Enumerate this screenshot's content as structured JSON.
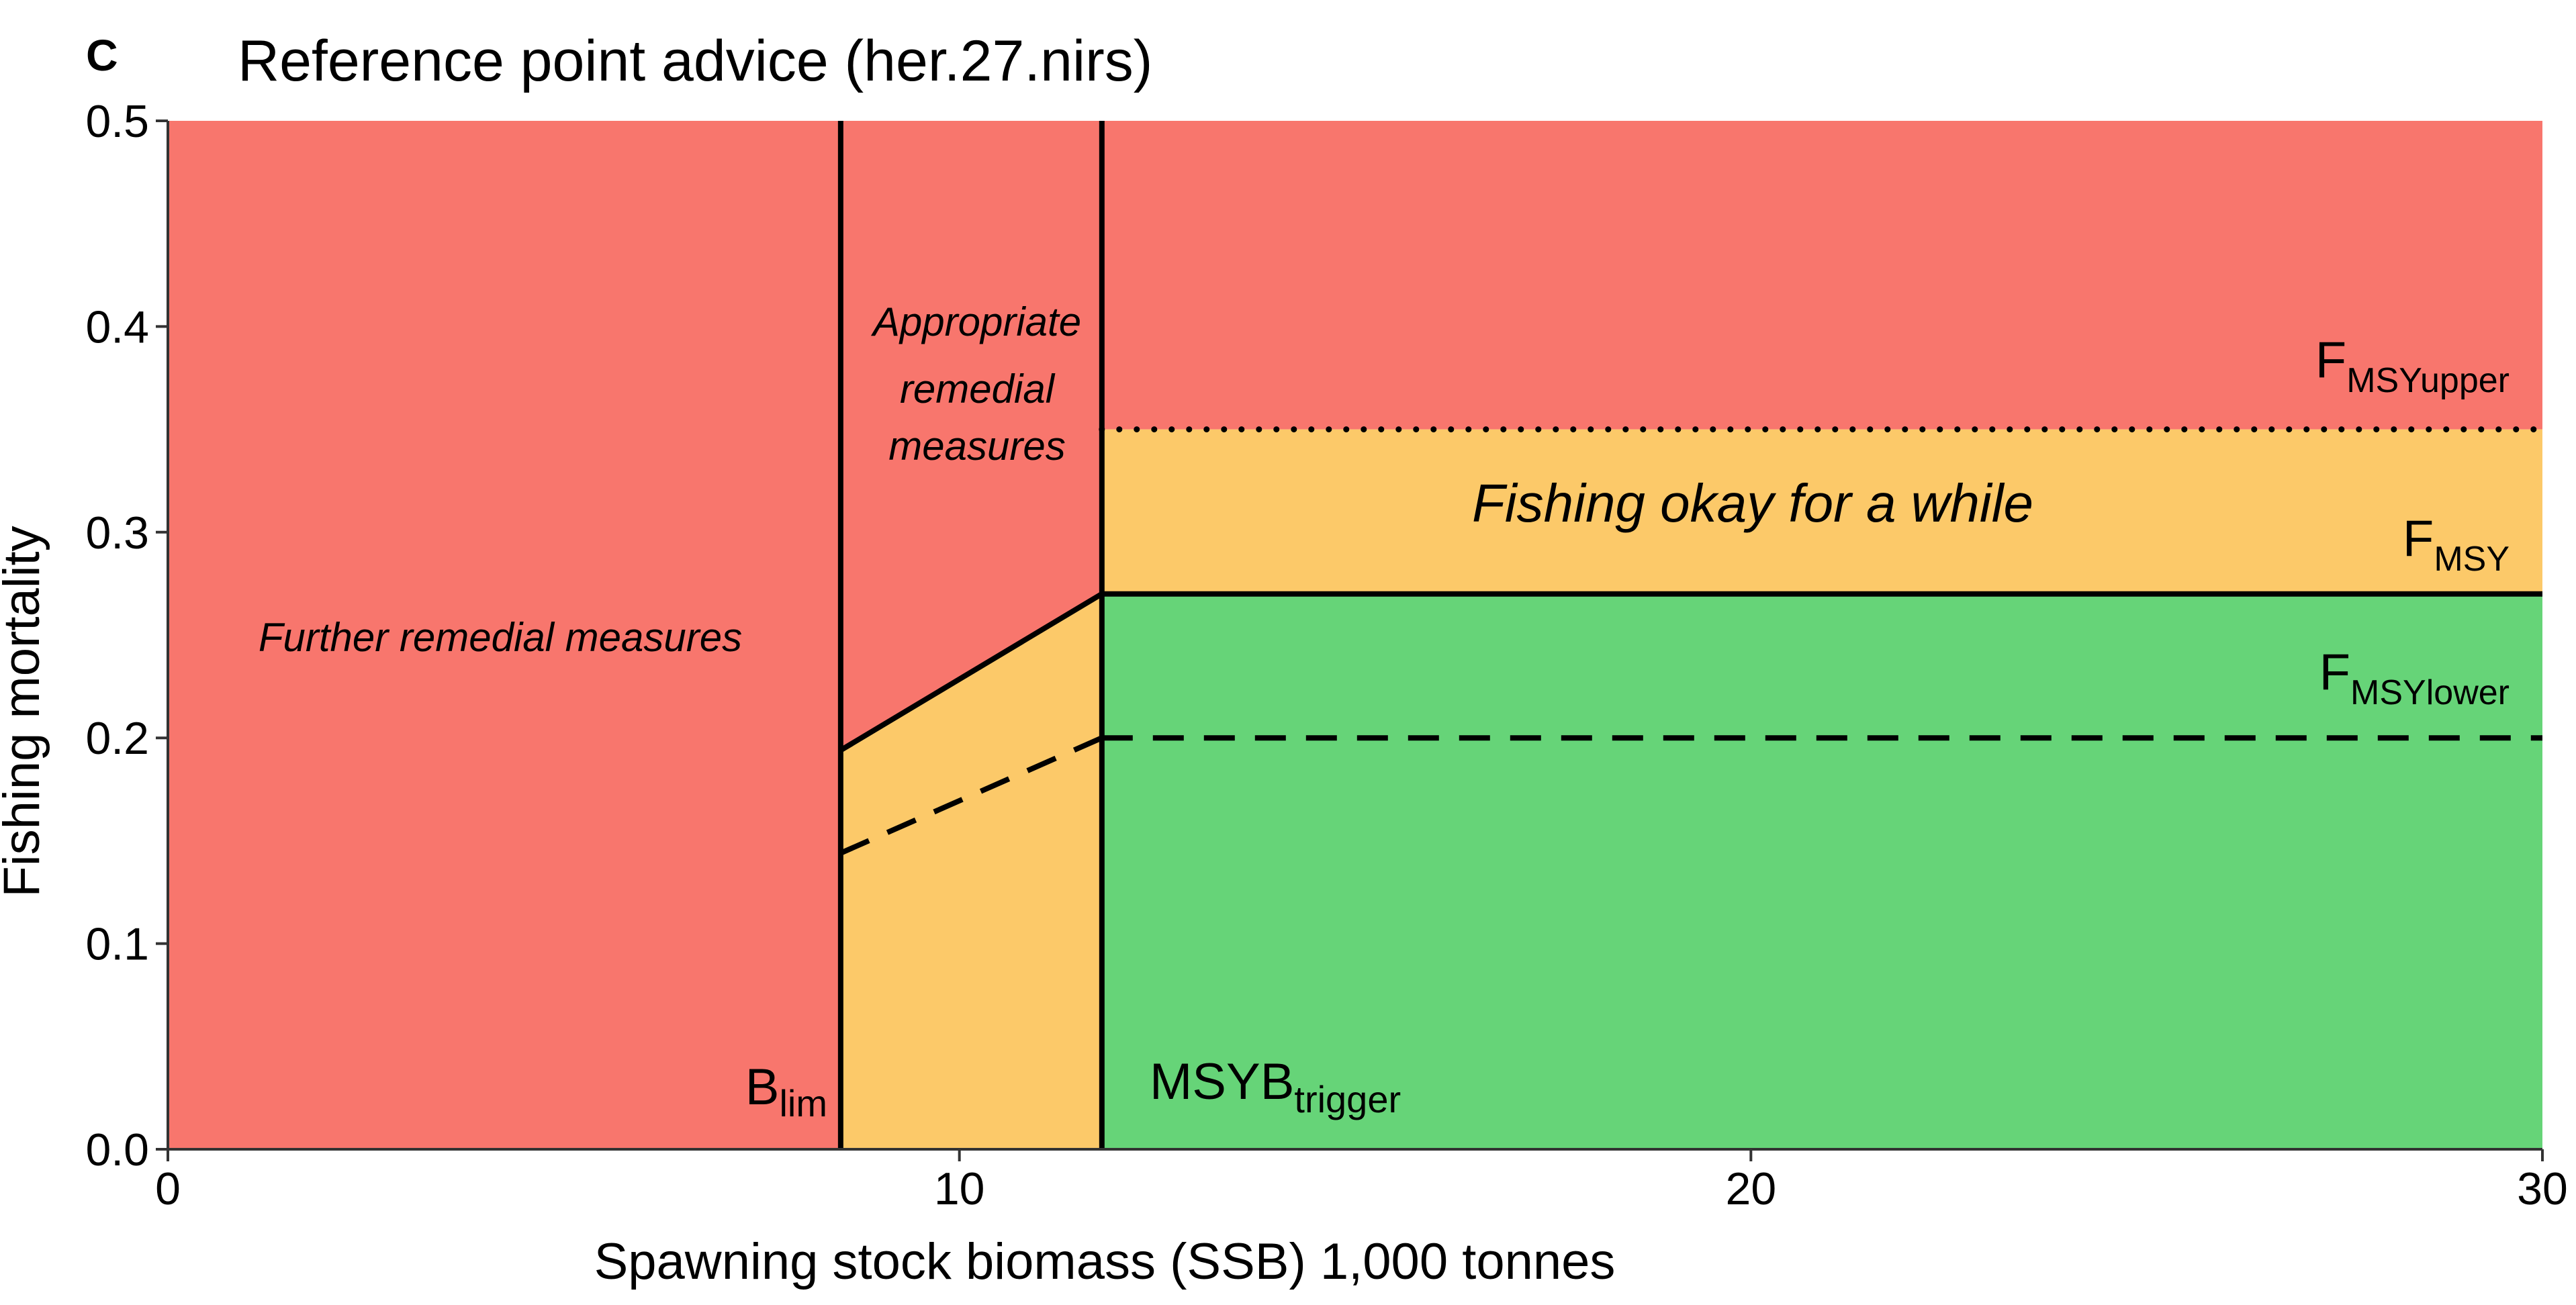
{
  "panel_letter": "C",
  "chart_data": {
    "type": "area",
    "title": "Reference point advice (her.27.nirs)",
    "xlabel": "Spawning stock biomass (SSB) 1,000 tonnes",
    "ylabel": "Fishing mortality",
    "xlim": [
      0,
      30
    ],
    "ylim": [
      0,
      0.5
    ],
    "x_ticks": [
      0,
      10,
      20,
      30
    ],
    "x_tick_labels": [
      "0",
      "10",
      "20",
      "30"
    ],
    "y_ticks": [
      0,
      0.1,
      0.2,
      0.3,
      0.4,
      0.5
    ],
    "y_tick_labels": [
      "0.0",
      "0.1",
      "0.2",
      "0.3",
      "0.4",
      "0.5"
    ],
    "grid": false,
    "reference_points": {
      "Blim": 8.5,
      "MSYBtrigger": 11.8,
      "Fmsy": 0.27,
      "Fmsy_lower": 0.2,
      "Fmsy_upper": 0.35
    },
    "colors": {
      "red": "#f8766d",
      "orange": "#fcc969",
      "green": "#66d478",
      "line": "#000000"
    },
    "series": [
      {
        "style": "solid",
        "x": [
          8.5,
          11.8,
          30
        ],
        "y": [
          0.194,
          0.27,
          0.27
        ]
      },
      {
        "style": "dashed",
        "x": [
          8.5,
          11.8
        ],
        "y": [
          0.144,
          0.2
        ]
      },
      {
        "style": "dashed",
        "x": [
          11.8,
          30
        ],
        "y": [
          0.2,
          0.2
        ]
      },
      {
        "style": "dotted",
        "x": [
          11.8,
          30
        ],
        "y": [
          0.35,
          0.35
        ]
      }
    ],
    "annotations": {
      "further": "Further remedial measures",
      "appropriate": [
        "Appropriate",
        "remedial",
        "measures"
      ],
      "okay": "Fishing okay for a while",
      "blim_main": "B",
      "blim_sub": "lim",
      "trigger_main": "MSYB",
      "trigger_sub": "trigger",
      "fmsy_upper_main": "F",
      "fmsy_upper_sub": "MSYupper",
      "fmsy_main": "F",
      "fmsy_sub": "MSY",
      "fmsy_lower_main": "F",
      "fmsy_lower_sub": "MSYlower"
    }
  }
}
